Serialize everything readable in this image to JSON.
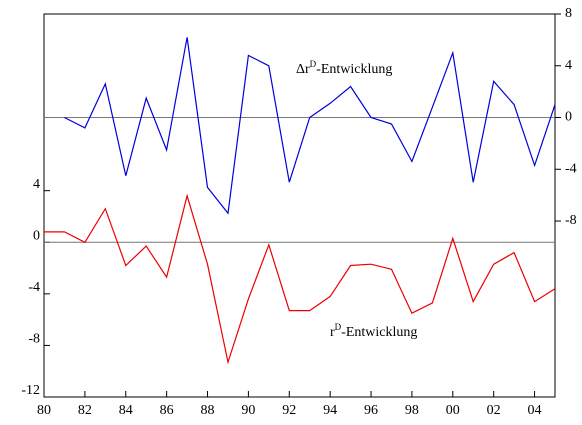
{
  "chart_data": {
    "type": "line",
    "x": [
      1980,
      1981,
      1982,
      1983,
      1984,
      1985,
      1986,
      1987,
      1988,
      1989,
      1990,
      1991,
      1992,
      1993,
      1994,
      1995,
      1996,
      1997,
      1998,
      1999,
      2000,
      2001,
      2002,
      2003,
      2004,
      2005
    ],
    "xlim": [
      1980,
      2005
    ],
    "xticks": [
      {
        "value": 1980,
        "label": "80"
      },
      {
        "value": 1982,
        "label": "82"
      },
      {
        "value": 1984,
        "label": "84"
      },
      {
        "value": 1986,
        "label": "86"
      },
      {
        "value": 1988,
        "label": "88"
      },
      {
        "value": 1990,
        "label": "90"
      },
      {
        "value": 1992,
        "label": "92"
      },
      {
        "value": 1994,
        "label": "94"
      },
      {
        "value": 1996,
        "label": "96"
      },
      {
        "value": 1998,
        "label": "98"
      },
      {
        "value": 2000,
        "label": "00"
      },
      {
        "value": 2002,
        "label": "02"
      },
      {
        "value": 2004,
        "label": "04"
      }
    ],
    "ylim": [
      -12,
      17.7
    ],
    "yticks": [
      -12,
      -8,
      -4,
      0,
      4
    ],
    "y2lim": [
      -21.6,
      8
    ],
    "y2ticks": [
      -8,
      -4,
      0,
      4,
      8
    ],
    "zero_lines": true,
    "series": [
      {
        "name_parts": [
          "Δr",
          "D",
          "-Entwicklung"
        ],
        "color": "#0000dd",
        "axis": "y2",
        "values": [
          null,
          0,
          -0.8,
          2.6,
          -4.5,
          1.5,
          -2.5,
          6.2,
          -5.4,
          -7.4,
          4.8,
          4.0,
          -5.0,
          0,
          1.1,
          2.4,
          0,
          -0.5,
          -3.4,
          0.8,
          5.0,
          -5.0,
          2.8,
          1.0,
          -3.7,
          1.0
        ]
      },
      {
        "name_parts": [
          "r",
          "D",
          "-Entwicklung"
        ],
        "color": "#ee0000",
        "axis": "y",
        "values": [
          0.8,
          0.8,
          0,
          2.6,
          -1.8,
          -0.3,
          -2.7,
          3.6,
          -1.7,
          -9.3,
          -4.4,
          -0.2,
          -5.3,
          -5.3,
          -4.2,
          -1.8,
          -1.7,
          -2.1,
          -5.5,
          -4.7,
          0.3,
          -4.6,
          -1.7,
          -0.8,
          -4.6,
          -3.6
        ]
      }
    ]
  }
}
